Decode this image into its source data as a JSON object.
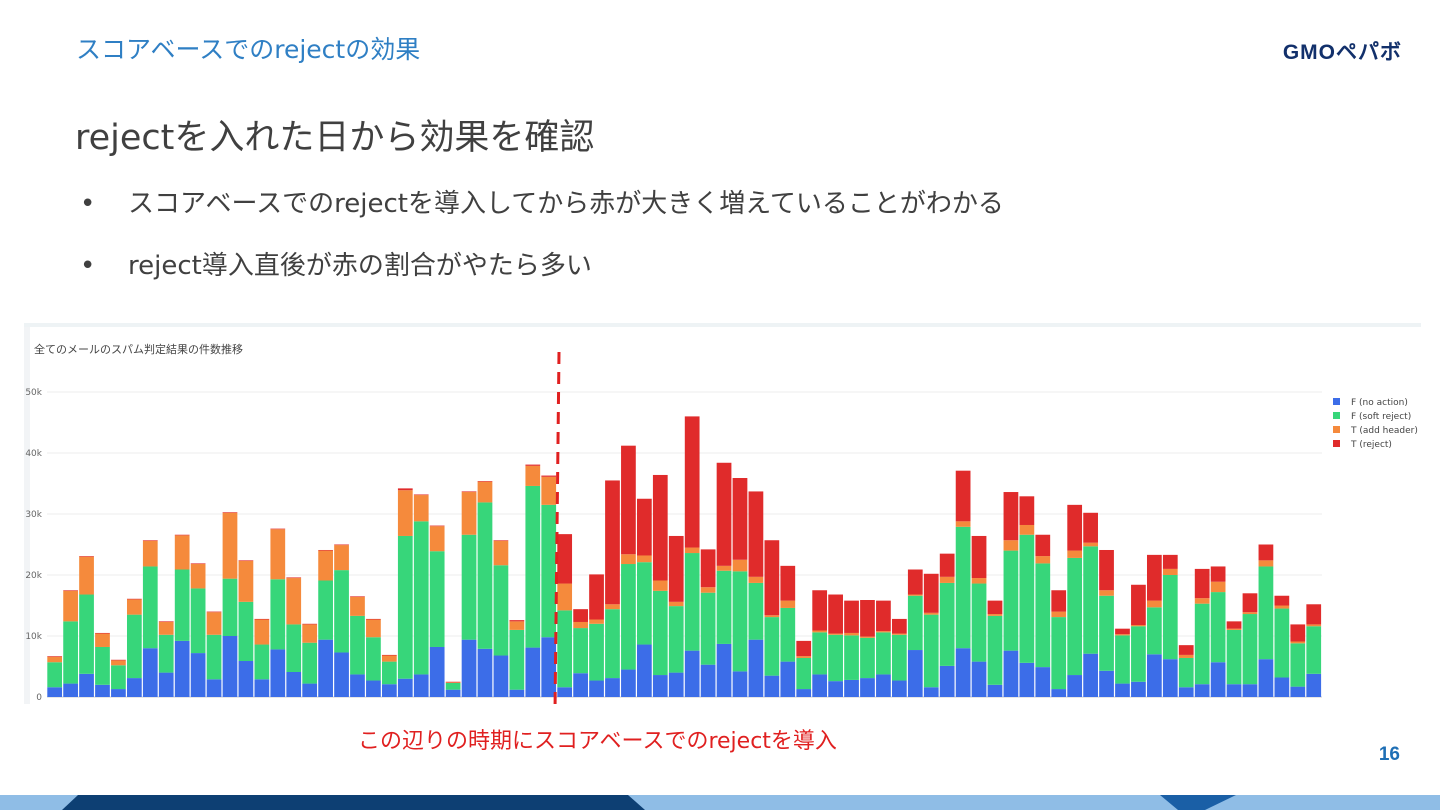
{
  "slide": {
    "section_title": "スコアベースでのrejectの効果",
    "logo": "GMOペパボ",
    "heading": "rejectを入れた日から効果を確認",
    "bullets": [
      "スコアベースでのrejectを導入してから赤が大きく増えていることがわかる",
      "reject導入直後が赤の割合がやたら多い"
    ],
    "annotation": "この辺りの時期にスコアベースでのrejectを導入",
    "page_number": "16"
  },
  "colors": {
    "section_title": "#2f7fc4",
    "annotation": "#e02020",
    "footer_light": "#8fbde6",
    "footer_dark": "#0d3f73"
  },
  "chart_data": {
    "type": "bar",
    "stacked": true,
    "title": "全てのメールのスパム判定結果の件数推移",
    "yticks": [
      "0",
      "10k",
      "20k",
      "30k",
      "40k",
      "50k"
    ],
    "ylim": [
      0,
      50000
    ],
    "grid": true,
    "legend_position": "top-right",
    "series": [
      {
        "name": "F (no action)",
        "color": "#3c6de8"
      },
      {
        "name": "F (soft reject)",
        "color": "#37d67a"
      },
      {
        "name": "T (add header)",
        "color": "#f58a3c"
      },
      {
        "name": "T (reject)",
        "color": "#e02b2b"
      }
    ],
    "reject_introduced_index": 32,
    "bars": [
      [
        1600,
        4100,
        900,
        100
      ],
      [
        2200,
        10200,
        5000,
        100
      ],
      [
        3800,
        13000,
        6200,
        100
      ],
      [
        2000,
        6200,
        2200,
        100
      ],
      [
        1300,
        3900,
        800,
        100
      ],
      [
        3100,
        10400,
        2500,
        100
      ],
      [
        8000,
        13400,
        4200,
        100
      ],
      [
        4000,
        6200,
        2100,
        100
      ],
      [
        9200,
        11700,
        5600,
        100
      ],
      [
        7200,
        10600,
        4000,
        100
      ],
      [
        2900,
        7300,
        3700,
        100
      ],
      [
        10000,
        9400,
        10800,
        100
      ],
      [
        5900,
        9700,
        6700,
        100
      ],
      [
        2900,
        5700,
        4100,
        100
      ],
      [
        7800,
        11500,
        8200,
        100
      ],
      [
        4100,
        7800,
        7600,
        100
      ],
      [
        2200,
        6700,
        3000,
        100
      ],
      [
        9400,
        9700,
        4900,
        100
      ],
      [
        7300,
        13500,
        4100,
        100
      ],
      [
        3700,
        9600,
        3100,
        100
      ],
      [
        2700,
        7100,
        2900,
        100
      ],
      [
        2100,
        3700,
        1000,
        100
      ],
      [
        3000,
        23400,
        7500,
        300
      ],
      [
        3700,
        25100,
        4300,
        100
      ],
      [
        8200,
        15700,
        4100,
        100
      ],
      [
        1200,
        1100,
        100,
        100
      ],
      [
        9400,
        17200,
        7000,
        100
      ],
      [
        7900,
        24000,
        3400,
        100
      ],
      [
        6800,
        14800,
        4000,
        100
      ],
      [
        1200,
        9800,
        1400,
        200
      ],
      [
        8100,
        26500,
        3300,
        200
      ],
      [
        9800,
        21700,
        4600,
        200
      ],
      [
        1600,
        12600,
        4400,
        8100
      ],
      [
        3900,
        7400,
        1000,
        2100
      ],
      [
        2700,
        9300,
        700,
        7400
      ],
      [
        3100,
        11300,
        800,
        20300
      ],
      [
        4500,
        17300,
        1600,
        17800
      ],
      [
        8600,
        13500,
        1100,
        9300
      ],
      [
        3600,
        13800,
        1700,
        17300
      ],
      [
        4000,
        10900,
        700,
        10800
      ],
      [
        7600,
        16000,
        900,
        21500
      ],
      [
        5300,
        11800,
        900,
        6200
      ],
      [
        8700,
        12000,
        800,
        16900
      ],
      [
        4200,
        16400,
        1900,
        13400
      ],
      [
        9400,
        9300,
        1000,
        14000
      ],
      [
        3500,
        9600,
        300,
        12300
      ],
      [
        5800,
        8800,
        1200,
        5700
      ],
      [
        1300,
        5100,
        300,
        2500
      ],
      [
        3700,
        6900,
        300,
        6600
      ],
      [
        2600,
        7600,
        200,
        6400
      ],
      [
        2800,
        7300,
        400,
        5300
      ],
      [
        3100,
        6600,
        200,
        6000
      ],
      [
        3700,
        6900,
        200,
        5000
      ],
      [
        2700,
        7500,
        200,
        2400
      ],
      [
        7700,
        8900,
        200,
        4100
      ],
      [
        1600,
        11900,
        300,
        6400
      ],
      [
        5100,
        13600,
        1000,
        3800
      ],
      [
        8000,
        19900,
        900,
        8300
      ],
      [
        5800,
        12800,
        900,
        6900
      ],
      [
        2000,
        11300,
        300,
        2200
      ],
      [
        7600,
        16400,
        1700,
        7900
      ],
      [
        5600,
        21000,
        1600,
        4700
      ],
      [
        4900,
        17000,
        1200,
        3500
      ],
      [
        1300,
        11800,
        900,
        3500
      ],
      [
        3600,
        19200,
        1200,
        7500
      ],
      [
        7100,
        17600,
        600,
        4900
      ],
      [
        4300,
        12300,
        900,
        6600
      ],
      [
        2200,
        7900,
        200,
        900
      ],
      [
        2500,
        9100,
        200,
        6600
      ],
      [
        7000,
        7700,
        1100,
        7500
      ],
      [
        6200,
        13800,
        1000,
        2300
      ],
      [
        1600,
        4800,
        500,
        1600
      ],
      [
        2100,
        13200,
        900,
        4800
      ],
      [
        5700,
        11500,
        1700,
        2500
      ],
      [
        2100,
        8900,
        200,
        1200
      ],
      [
        2100,
        11500,
        300,
        3100
      ],
      [
        6200,
        15200,
        1000,
        2600
      ],
      [
        3200,
        11300,
        500,
        1600
      ],
      [
        1700,
        7100,
        300,
        2800
      ],
      [
        3800,
        7800,
        300,
        3300
      ]
    ]
  }
}
